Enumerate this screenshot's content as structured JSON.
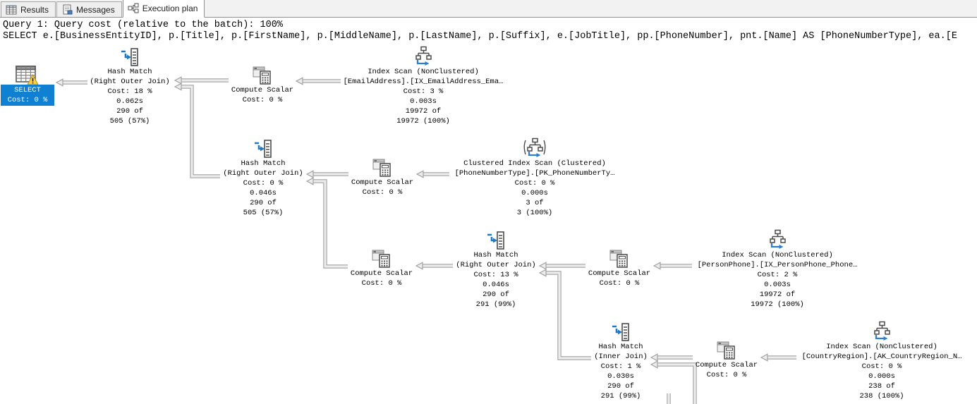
{
  "tabs": [
    {
      "label": "Results",
      "icon": "results-grid-icon",
      "active": false
    },
    {
      "label": "Messages",
      "icon": "messages-icon",
      "active": false
    },
    {
      "label": "Execution plan",
      "icon": "execution-plan-icon",
      "active": true
    }
  ],
  "query_header": {
    "cost_line": "Query 1: Query cost (relative to the batch): 100%",
    "sql_line": "SELECT e.[BusinessEntityID], p.[Title], p.[FirstName], p.[MiddleName], p.[LastName], p.[Suffix], e.[JobTitle], pp.[PhoneNumber], pnt.[Name] AS [PhoneNumberType], ea.[E"
  },
  "plan": {
    "nodes": [
      {
        "name": "select",
        "warning": true,
        "lines": [
          "SELECT",
          "Cost: 0 %"
        ]
      },
      {
        "name": "hash-match-1",
        "lines": [
          "Hash Match",
          "(Right Outer Join)",
          "Cost: 18 %",
          "0.062s",
          "290 of",
          "505 (57%)"
        ]
      },
      {
        "name": "compute-scalar-1",
        "lines": [
          "Compute Scalar",
          "Cost: 0 %"
        ]
      },
      {
        "name": "index-scan-emailaddress",
        "lines": [
          "Index Scan (NonClustered)",
          "[EmailAddress].[IX_EmailAddress_Ema…",
          "Cost: 3 %",
          "0.003s",
          "19972 of",
          "19972 (100%)"
        ]
      },
      {
        "name": "hash-match-2",
        "lines": [
          "Hash Match",
          "(Right Outer Join)",
          "Cost: 0 %",
          "0.046s",
          "290 of",
          "505 (57%)"
        ]
      },
      {
        "name": "compute-scalar-2",
        "lines": [
          "Compute Scalar",
          "Cost: 0 %"
        ]
      },
      {
        "name": "clustered-index-scan-phonenumbertype",
        "lines": [
          "Clustered Index Scan (Clustered)",
          "[PhoneNumberType].[PK_PhoneNumberTy…",
          "Cost: 0 %",
          "0.000s",
          "3 of",
          "3 (100%)"
        ]
      },
      {
        "name": "compute-scalar-3",
        "lines": [
          "Compute Scalar",
          "Cost: 0 %"
        ]
      },
      {
        "name": "hash-match-3",
        "lines": [
          "Hash Match",
          "(Right Outer Join)",
          "Cost: 13 %",
          "0.046s",
          "290 of",
          "291 (99%)"
        ]
      },
      {
        "name": "compute-scalar-4",
        "lines": [
          "Compute Scalar",
          "Cost: 0 %"
        ]
      },
      {
        "name": "index-scan-personphone",
        "lines": [
          "Index Scan (NonClustered)",
          "[PersonPhone].[IX_PersonPhone_Phone…",
          "Cost: 2 %",
          "0.003s",
          "19972 of",
          "19972 (100%)"
        ]
      },
      {
        "name": "hash-match-4",
        "lines": [
          "Hash Match",
          "(Inner Join)",
          "Cost: 1 %",
          "0.030s",
          "290 of",
          "291 (99%)"
        ]
      },
      {
        "name": "compute-scalar-5",
        "lines": [
          "Compute Scalar",
          "Cost: 0 %"
        ]
      },
      {
        "name": "index-scan-countryregion",
        "lines": [
          "Index Scan (NonClustered)",
          "[CountryRegion].[AK_CountryRegion_N…",
          "Cost: 0 %",
          "0.000s",
          "238 of",
          "238 (100%)"
        ]
      }
    ],
    "colors": {
      "selected_node_bg": "#1080d2",
      "warning_yellow": "#fdd13a",
      "edge_gray": "#a3a3a3",
      "icon_blue": "#1f7ac6"
    }
  }
}
